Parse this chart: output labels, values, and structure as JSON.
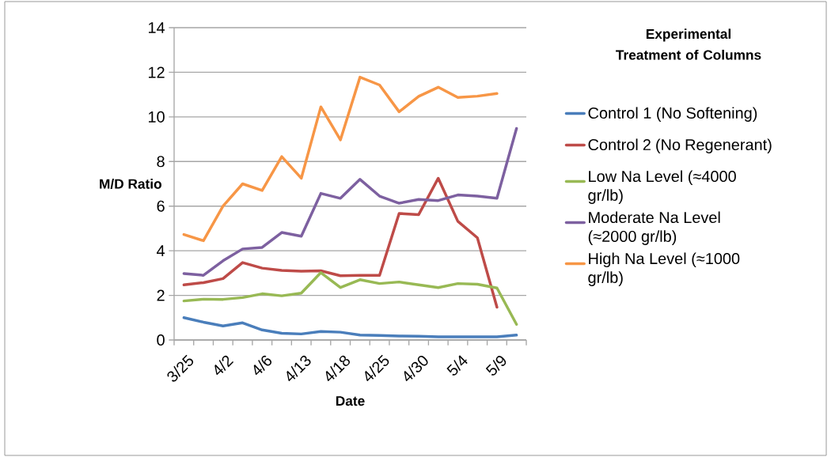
{
  "chart_data": {
    "type": "line",
    "xlabel": "Date",
    "ylabel": "M/D Ratio",
    "legend_title": "Experimental Treatment of Columns",
    "categories": [
      "3/25",
      null,
      "4/2",
      null,
      "4/6",
      null,
      "4/13",
      null,
      "4/18",
      null,
      "4/25",
      null,
      "4/30",
      null,
      "5/4",
      null,
      "5/9",
      null
    ],
    "series": [
      {
        "name": "Control 1 (No Softening)",
        "color": "#4a7ebb",
        "values": [
          1.0,
          0.8,
          0.63,
          0.77,
          0.45,
          0.3,
          0.27,
          0.38,
          0.35,
          0.22,
          0.2,
          0.18,
          0.17,
          0.14,
          0.14,
          0.14,
          0.14,
          0.22
        ]
      },
      {
        "name": "Control 2 (No Regenerant)",
        "color": "#be4b48",
        "values": [
          2.47,
          2.57,
          2.75,
          3.47,
          3.22,
          3.12,
          3.08,
          3.1,
          2.88,
          2.9,
          2.9,
          5.67,
          5.62,
          7.25,
          5.32,
          4.58,
          1.47,
          null
        ]
      },
      {
        "name": "Low Na Level (≈4000 gr/lb)",
        "color": "#98b954",
        "values": [
          1.75,
          1.83,
          1.82,
          1.9,
          2.07,
          1.98,
          2.1,
          3.02,
          2.35,
          2.7,
          2.53,
          2.6,
          2.47,
          2.35,
          2.53,
          2.5,
          2.33,
          0.7
        ]
      },
      {
        "name": "Moderate Na Level (≈2000 gr/lb)",
        "color": "#7d60a0",
        "values": [
          2.98,
          2.9,
          3.55,
          4.08,
          4.15,
          4.82,
          4.65,
          6.57,
          6.35,
          7.2,
          6.45,
          6.13,
          6.3,
          6.25,
          6.5,
          6.45,
          6.35,
          9.48
        ]
      },
      {
        "name": "High Na Level (≈1000 gr/lb)",
        "color": "#f79646",
        "values": [
          4.73,
          4.45,
          6.0,
          7.0,
          6.7,
          8.22,
          7.25,
          10.45,
          8.97,
          11.78,
          11.43,
          10.23,
          10.92,
          11.33,
          10.87,
          10.93,
          11.05,
          null
        ]
      }
    ],
    "ylim": [
      0,
      14
    ],
    "yticks": [
      0,
      2,
      4,
      6,
      8,
      10,
      12,
      14
    ],
    "grid": "y",
    "legend": "right",
    "marker": "none",
    "line_style": "solid"
  }
}
